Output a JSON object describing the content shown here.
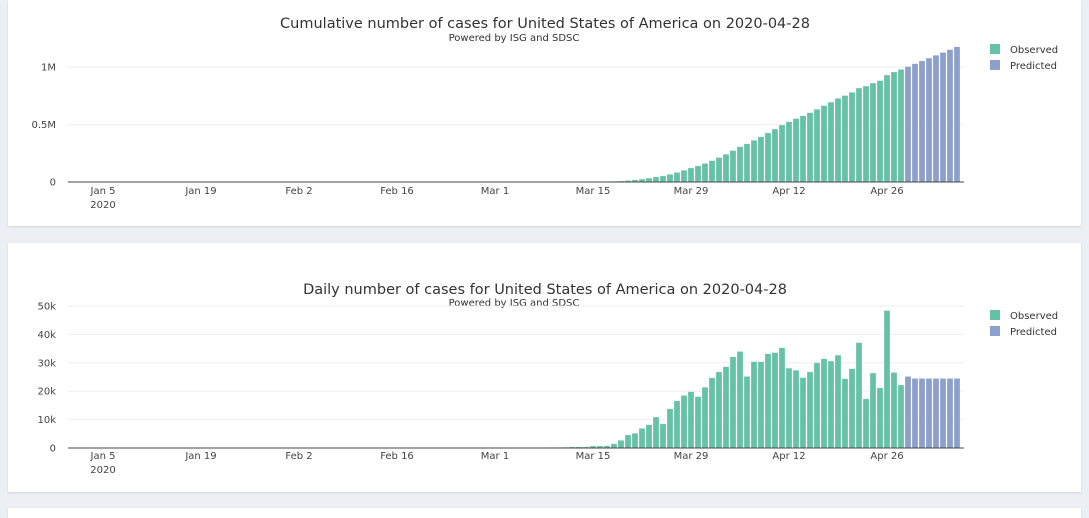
{
  "colors": {
    "observed": "#66c2a5",
    "predicted": "#8da0cb"
  },
  "chart_data": [
    {
      "type": "bar",
      "title": "Cumulative number of cases for United States of America on 2020-04-28",
      "subtitle": "Powered by ISG and SDSC",
      "x_start": "2020-03-01",
      "xrange": [
        "2019-12-31",
        "2020-05-07"
      ],
      "x_ticks": [
        "Jan 5",
        "Jan 19",
        "Feb 2",
        "Feb 16",
        "Mar 1",
        "Mar 15",
        "Mar 29",
        "Apr 12",
        "Apr 26"
      ],
      "x_tick_year": "2020",
      "ylim": [
        0,
        1200000
      ],
      "y_ticks": [
        {
          "v": 0,
          "label": "0"
        },
        {
          "v": 500000,
          "label": "0.5M"
        },
        {
          "v": 1000000,
          "label": "1M"
        }
      ],
      "grid": true,
      "legend": "top-right",
      "series": [
        {
          "name": "Observed",
          "values": [
            80,
            100,
            120,
            140,
            210,
            280,
            380,
            480,
            680,
            880,
            1180,
            1580,
            1980,
            2380,
            3080,
            3780,
            4580,
            6080,
            8780,
            13380,
            18580,
            25480,
            33680,
            44580,
            53080,
            66880,
            83480,
            101980,
            121780,
            139880,
            161280,
            185980,
            212780,
            241380,
            273480,
            307480,
            332680,
            363080,
            393480,
            426680,
            460280,
            495580,
            523680,
            551080,
            575880,
            602680,
            632680,
            664080,
            694680,
            727380,
            751780,
            779680,
            816780,
            834080,
            860480,
            881680,
            930080,
            956680,
            978880
          ]
        },
        {
          "name": "Predicted",
          "start": "2020-04-29",
          "values": [
            1004080,
            1028580,
            1053080,
            1077580,
            1102080,
            1126580,
            1151080,
            1175580
          ]
        }
      ]
    },
    {
      "type": "bar",
      "title": "Daily number of cases for United States of America on 2020-04-28",
      "subtitle": "Powered by ISG and SDSC",
      "x_start": "2020-03-01",
      "xrange": [
        "2019-12-31",
        "2020-05-07"
      ],
      "x_ticks": [
        "Jan 5",
        "Jan 19",
        "Feb 2",
        "Feb 16",
        "Mar 1",
        "Mar 15",
        "Mar 29",
        "Apr 12",
        "Apr 26"
      ],
      "x_tick_year": "2020",
      "ylim": [
        0,
        50000
      ],
      "y_ticks": [
        {
          "v": 0,
          "label": "0"
        },
        {
          "v": 10000,
          "label": "10k"
        },
        {
          "v": 20000,
          "label": "20k"
        },
        {
          "v": 30000,
          "label": "30k"
        },
        {
          "v": 40000,
          "label": "40k"
        },
        {
          "v": 50000,
          "label": "50k"
        }
      ],
      "grid": true,
      "legend": "top-right",
      "series": [
        {
          "name": "Observed",
          "values": [
            10,
            20,
            20,
            20,
            70,
            70,
            100,
            100,
            200,
            200,
            300,
            400,
            400,
            400,
            700,
            700,
            800,
            1500,
            2700,
            4600,
            5200,
            6900,
            8200,
            10900,
            8500,
            13800,
            16600,
            18500,
            19800,
            18100,
            21400,
            24700,
            26800,
            28600,
            32100,
            34000,
            25200,
            30400,
            30400,
            33200,
            33600,
            35300,
            28100,
            27400,
            24800,
            26800,
            30000,
            31400,
            30600,
            32700,
            24400,
            27900,
            37100,
            17300,
            26400,
            21200,
            48400,
            26600,
            22200
          ]
        },
        {
          "name": "Predicted",
          "start": "2020-04-29",
          "values": [
            25200,
            24500,
            24500,
            24500,
            24500,
            24500,
            24500,
            24500
          ]
        }
      ]
    }
  ]
}
